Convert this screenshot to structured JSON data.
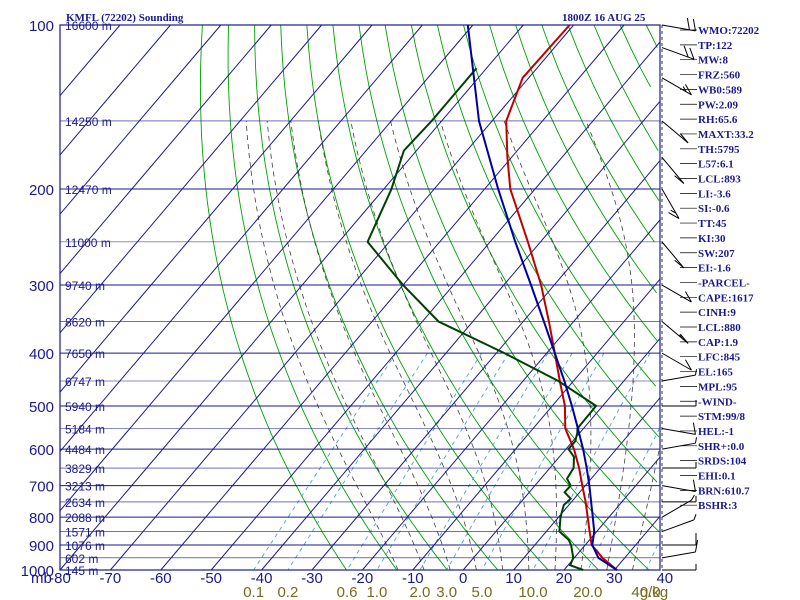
{
  "chart_data": {
    "type": "line",
    "title": "KMFL (72202) Sounding",
    "valid_time": "1800Z 16 AUG 25",
    "pressure_unit": "mb",
    "mixing_ratio_unit": "g/kg",
    "xlim": [
      -80,
      0
    ],
    "ylim": [
      1000,
      100
    ],
    "y_scale": "log",
    "pressure_ticks": [
      100,
      200,
      300,
      400,
      500,
      600,
      700,
      800,
      900,
      1000
    ],
    "temperature_ticks": [
      -80,
      -70,
      -60,
      -50,
      -40,
      -30,
      -20,
      -10,
      0,
      10,
      20,
      30,
      40
    ],
    "mixing_ratio_labels": [
      {
        "label": "0.1",
        "value": 0.1
      },
      {
        "label": "0.2",
        "value": 0.2
      },
      {
        "label": "0.6",
        "value": 0.6
      },
      {
        "label": "1.0",
        "value": 1.0
      },
      {
        "label": "2.0",
        "value": 2.0
      },
      {
        "label": "3.0",
        "value": 3.0
      },
      {
        "label": "5.0",
        "value": 5.0
      },
      {
        "label": "10.0",
        "value": 10.0
      },
      {
        "label": "20.0",
        "value": 20.0
      },
      {
        "label": "40.0",
        "value": 40.0
      }
    ],
    "height_labels": [
      {
        "p": 100,
        "text": "16600 m"
      },
      {
        "p": 150,
        "text": "14250 m"
      },
      {
        "p": 200,
        "text": "12470 m"
      },
      {
        "p": 250,
        "text": "11000 m"
      },
      {
        "p": 300,
        "text": "9740 m"
      },
      {
        "p": 350,
        "text": "8620 m"
      },
      {
        "p": 400,
        "text": "7650 m"
      },
      {
        "p": 450,
        "text": "6747 m"
      },
      {
        "p": 500,
        "text": "5940 m"
      },
      {
        "p": 550,
        "text": "5184 m"
      },
      {
        "p": 600,
        "text": "4484 m"
      },
      {
        "p": 650,
        "text": "3829 m"
      },
      {
        "p": 700,
        "text": "3213 m"
      },
      {
        "p": 750,
        "text": "2634 m"
      },
      {
        "p": 800,
        "text": "2088 m"
      },
      {
        "p": 850,
        "text": "1571 m"
      },
      {
        "p": 900,
        "text": "1076 m"
      },
      {
        "p": 950,
        "text": "602 m"
      },
      {
        "p": 1000,
        "text": "145 m"
      }
    ],
    "series": [
      {
        "role": "temperature",
        "color": "#c00000",
        "p": [
          1010,
          1000,
          950,
          925,
          900,
          850,
          800,
          750,
          700,
          650,
          600,
          550,
          500,
          450,
          400,
          350,
          300,
          250,
          200,
          175,
          150,
          125,
          100
        ],
        "t": [
          32.6,
          30.5,
          25.6,
          23.5,
          21.3,
          18.6,
          15.8,
          12.8,
          9.4,
          5.8,
          1.6,
          -3.6,
          -7.5,
          -12.7,
          -18.4,
          -24.9,
          -32.6,
          -42.5,
          -54.9,
          -60.8,
          -67.2,
          -71.2,
          -70.8
        ]
      },
      {
        "role": "dewpoint",
        "color": "#004000",
        "p": [
          1000,
          980,
          950,
          900,
          880,
          850,
          800,
          760,
          740,
          720,
          700,
          680,
          650,
          620,
          600,
          580,
          560,
          550,
          500,
          450,
          400,
          350,
          300,
          250,
          200,
          170,
          150,
          130,
          120
        ],
        "t": [
          23.8,
          20.4,
          19.8,
          17.2,
          15.8,
          12.6,
          10.4,
          9.0,
          9.3,
          7.0,
          7.1,
          5.2,
          4.7,
          2.9,
          0.5,
          0.5,
          -0.5,
          -1.2,
          -1.3,
          -13.0,
          -28.4,
          -46.8,
          -60.0,
          -74.3,
          -78.5,
          -82.5,
          -82.0,
          -82.0,
          -82.0
        ]
      },
      {
        "role": "parcel",
        "color": "#0000a0",
        "p": [
          1000,
          950,
          900,
          850,
          800,
          750,
          700,
          650,
          600,
          550,
          500,
          450,
          400,
          350,
          300,
          250,
          200,
          150,
          100
        ],
        "t": [
          30.5,
          24.8,
          21.4,
          19.5,
          16.8,
          13.9,
          10.8,
          7.3,
          3.4,
          -1.1,
          -6.1,
          -11.8,
          -18.4,
          -25.9,
          -34.6,
          -45.0,
          -57.3,
          -72.6,
          -91.0
        ]
      }
    ],
    "wind_barbs": [
      {
        "p": 1000,
        "spd": 5,
        "dir": 90
      },
      {
        "p": 950,
        "spd": 10,
        "dir": 100
      },
      {
        "p": 900,
        "spd": 10,
        "dir": 90
      },
      {
        "p": 850,
        "spd": 5,
        "dir": 110
      },
      {
        "p": 800,
        "spd": 5,
        "dir": 120
      },
      {
        "p": 750,
        "spd": 5,
        "dir": 90
      },
      {
        "p": 700,
        "spd": 10,
        "dir": 80
      },
      {
        "p": 650,
        "spd": 5,
        "dir": 90
      },
      {
        "p": 600,
        "spd": 5,
        "dir": 100
      },
      {
        "p": 550,
        "spd": 10,
        "dir": 80
      },
      {
        "p": 500,
        "spd": 5,
        "dir": 90
      },
      {
        "p": 450,
        "spd": 5,
        "dir": 100
      },
      {
        "p": 400,
        "spd": 10,
        "dir": 60
      },
      {
        "p": 350,
        "spd": 15,
        "dir": 50
      },
      {
        "p": 300,
        "spd": 10,
        "dir": 60
      },
      {
        "p": 250,
        "spd": 10,
        "dir": 40
      },
      {
        "p": 200,
        "spd": 15,
        "dir": 30
      },
      {
        "p": 175,
        "spd": 10,
        "dir": 40
      },
      {
        "p": 150,
        "spd": 10,
        "dir": 50
      },
      {
        "p": 125,
        "spd": 15,
        "dir": 60
      },
      {
        "p": 110,
        "spd": 20,
        "dir": 70
      },
      {
        "p": 100,
        "spd": 20,
        "dir": 80
      }
    ],
    "indices": [
      "WMO:72202",
      "TP:122",
      "MW:8",
      "FRZ:560",
      "WB0:589",
      "PW:2.09",
      "RH:65.6",
      "MAXT:33.2",
      "TH:5795",
      "L57:6.1",
      "LCL:893",
      "LI:-3.6",
      "SI:-0.6",
      "TT:45",
      "KI:30",
      "SW:207",
      "EI:-1.6",
      "-PARCEL-",
      "CAPE:1617",
      "CINH:9",
      "LCL:880",
      "CAP:1.9",
      "LFC:845",
      "EL:165",
      "MPL:95",
      "-WIND-",
      "STM:99/8",
      "HEL:-1",
      "SHR+:0.0",
      "SRDS:104",
      "EHI:0.1",
      "BRN:610.7",
      "BSHR:3"
    ],
    "grid": true
  },
  "colors": {
    "frame": "#1a1a8c",
    "isobar": "#1a1a8c",
    "isotherm": "#1a1a8c",
    "dry_adiabat": "#00a000",
    "moist_adiabat": "#404040",
    "mixing_ratio": "#4aa0e0",
    "mixing_label": "#7a6a1a",
    "text": "#1a1a8c"
  }
}
